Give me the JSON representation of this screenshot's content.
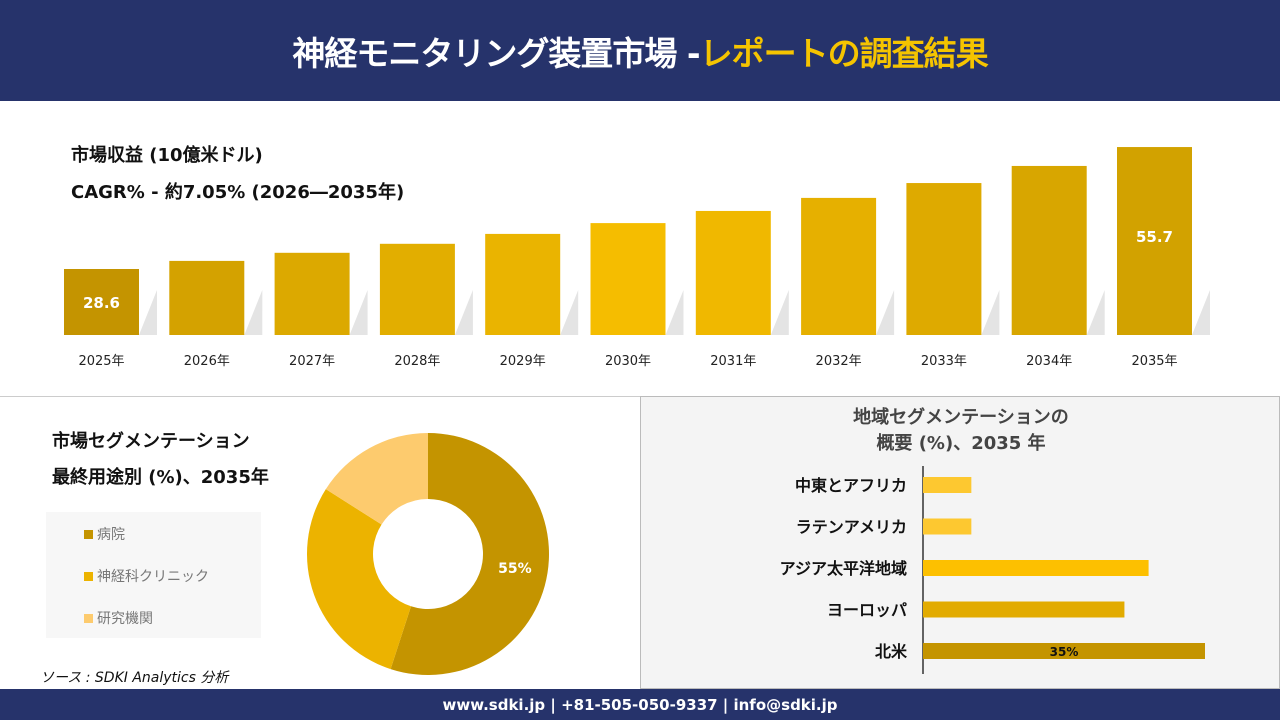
{
  "header": {
    "title_main": "神経モニタリング装置市場 - ",
    "title_accent": "レポートの調査結果"
  },
  "revenue": {
    "title": "市場収益 (10億米ドル)",
    "cagr": "CAGR% - 約7.05% (2026―2035年)"
  },
  "chart_data": [
    {
      "type": "bar",
      "categories": [
        "2025年",
        "2026年",
        "2027年",
        "2028年",
        "2029年",
        "2030年",
        "2031年",
        "2032年",
        "2033年",
        "2034年",
        "2035年"
      ],
      "values": [
        28.6,
        30.4,
        32.2,
        34.2,
        36.4,
        38.8,
        41.5,
        44.4,
        47.7,
        51.5,
        55.7
      ],
      "data_labels": {
        "0": "28.6",
        "10": "55.7"
      },
      "colors": [
        "#c49400",
        "#d4a200",
        "#dca900",
        "#e2ae00",
        "#eab400",
        "#f5bd00",
        "#f0b800",
        "#e6b000",
        "#deaa00",
        "#d8a600",
        "#d2a200"
      ]
    },
    {
      "type": "pie",
      "title": "市場セグメンテーション 最終用途別 (%)、2035年",
      "categories": [
        "病院",
        "神経科クリニック",
        "研究機関"
      ],
      "values": [
        55,
        29,
        16
      ],
      "colors": [
        "#c49400",
        "#ecb300",
        "#fdcb6e"
      ],
      "data_labels": {
        "0": "55%"
      }
    },
    {
      "type": "bar",
      "orientation": "horizontal",
      "title": "地域セグメンテーションの 概要 (%)、2035 年",
      "categories": [
        "中東とアフリカ",
        "ラテンアメリカ",
        "アジア太平洋地域",
        "ヨーロッパ",
        "北米"
      ],
      "values": [
        6,
        6,
        28,
        25,
        35
      ],
      "data_labels": {
        "4": "35%"
      },
      "colors": [
        "#fdc830",
        "#fdc830",
        "#fdc000",
        "#e2ab00",
        "#c49400"
      ]
    }
  ],
  "source": "ソース : SDKI Analytics 分析",
  "footer": "www.sdki.jp | +81-505-050-9337 | info@sdki.jp"
}
